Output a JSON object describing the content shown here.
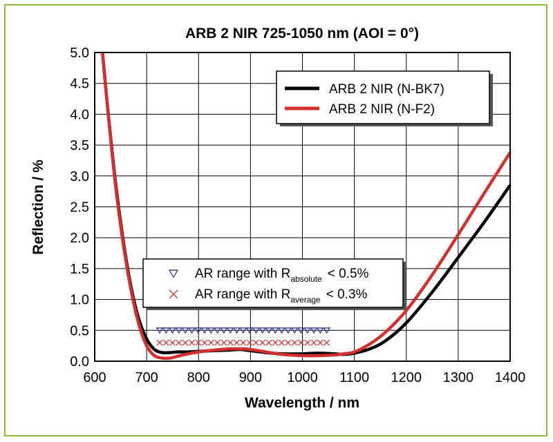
{
  "chart_data": {
    "type": "line",
    "title": "ARB 2 NIR 725-1050 nm (AOI = 0°)",
    "xlabel": "Wavelength / nm",
    "ylabel": "Reflection / %",
    "xlim": [
      600,
      1400
    ],
    "ylim": [
      0,
      5
    ],
    "xticks": [
      600,
      700,
      800,
      900,
      1000,
      1100,
      1200,
      1300,
      1400
    ],
    "yticks": [
      0.0,
      0.5,
      1.0,
      1.5,
      2.0,
      2.5,
      3.0,
      3.5,
      4.0,
      4.5,
      5.0
    ],
    "xtick_labels": [
      "600",
      "700",
      "800",
      "900",
      "1000",
      "1100",
      "1200",
      "1300",
      "1400"
    ],
    "ytick_labels": [
      "0.0",
      "0.5",
      "1.0",
      "1.5",
      "2.0",
      "2.5",
      "3.0",
      "3.5",
      "4.0",
      "4.5",
      "5.0"
    ],
    "grid": true,
    "series": [
      {
        "name": "ARB 2 NIR (N-BK7)",
        "color": "#000000",
        "x": [
          615,
          625,
          640,
          655,
          670,
          685,
          700,
          715,
          730,
          745,
          760,
          780,
          800,
          830,
          860,
          880,
          900,
          930,
          960,
          1000,
          1030,
          1060,
          1080,
          1100,
          1130,
          1160,
          1200,
          1250,
          1300,
          1350,
          1400
        ],
        "y": [
          5.0,
          4.1,
          2.9,
          1.95,
          1.2,
          0.68,
          0.36,
          0.19,
          0.14,
          0.14,
          0.15,
          0.15,
          0.16,
          0.17,
          0.18,
          0.19,
          0.17,
          0.14,
          0.12,
          0.12,
          0.13,
          0.12,
          0.11,
          0.13,
          0.2,
          0.33,
          0.62,
          1.12,
          1.68,
          2.25,
          2.85
        ]
      },
      {
        "name": "ARB 2 NIR (N-F2)",
        "color": "#d42f2f",
        "x": [
          615,
          625,
          640,
          655,
          670,
          685,
          700,
          715,
          730,
          745,
          760,
          780,
          800,
          830,
          860,
          880,
          900,
          930,
          960,
          1000,
          1030,
          1060,
          1080,
          1100,
          1130,
          1160,
          1200,
          1250,
          1300,
          1350,
          1400
        ],
        "y": [
          5.0,
          4.1,
          2.85,
          1.9,
          1.15,
          0.6,
          0.25,
          0.09,
          0.05,
          0.05,
          0.08,
          0.12,
          0.15,
          0.18,
          0.2,
          0.2,
          0.19,
          0.15,
          0.11,
          0.09,
          0.09,
          0.1,
          0.12,
          0.15,
          0.28,
          0.47,
          0.82,
          1.4,
          2.05,
          2.72,
          3.38
        ]
      }
    ],
    "markers": [
      {
        "label_main": "AR range with R",
        "label_sub": "absolute",
        "label_tail": "< 0.5%",
        "symbol": "triangle-down",
        "color": "#2b3a8c",
        "x_start": 725,
        "x_end": 1055,
        "y": 0.5
      },
      {
        "label_main": "AR range with R",
        "label_sub": "average",
        "label_tail": "< 0.3%",
        "symbol": "cross",
        "color": "#d42f2f",
        "x_start": 725,
        "x_end": 1055,
        "y": 0.3
      }
    ],
    "legend_placement": "top-right"
  }
}
